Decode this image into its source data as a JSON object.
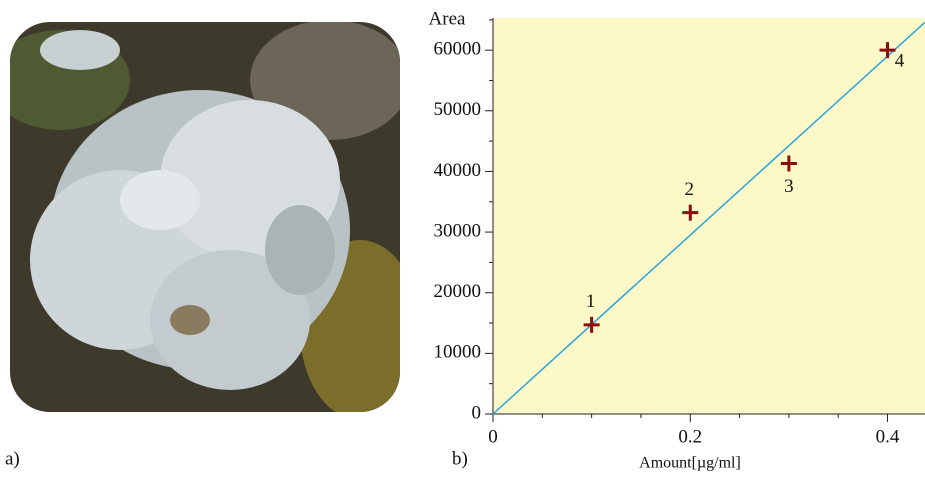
{
  "panels": {
    "a": {
      "label": "a)"
    },
    "b": {
      "label": "b)"
    }
  },
  "chart_data": {
    "type": "scatter",
    "y_label": "Area",
    "x_label": "Amount[µg/ml]",
    "x": [
      0.1,
      0.2,
      0.3,
      0.4
    ],
    "series": [
      {
        "color": "#8b0d0d",
        "values": [
          14700,
          33200,
          41300,
          60000
        ]
      }
    ],
    "point_labels": [
      "1",
      "2",
      "3",
      "4"
    ],
    "fit_line": {
      "color": "#2aa5dc",
      "x": [
        0,
        0.438
      ],
      "y": [
        0,
        64600
      ]
    },
    "xlim": [
      0,
      0.438
    ],
    "ylim": [
      0,
      65300
    ],
    "xticks": [
      0,
      0.2,
      0.4
    ],
    "yticks": [
      0,
      10000,
      20000,
      30000,
      40000,
      50000,
      60000
    ],
    "xminorticks": [
      0.05,
      0.1,
      0.15,
      0.25,
      0.3,
      0.35
    ],
    "yminorticks": [
      5000,
      15000,
      25000,
      35000,
      45000,
      55000,
      65000
    ],
    "background": "#fcf8c8"
  }
}
